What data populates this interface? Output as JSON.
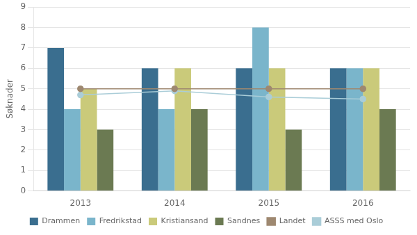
{
  "chart_data": {
    "type": "bar",
    "y_label": "Søknader",
    "categories": [
      2013,
      2014,
      2015,
      2016
    ],
    "series": [
      {
        "name": "Drammen",
        "color": "#3a6e8f",
        "values": [
          7,
          6,
          6,
          6
        ]
      },
      {
        "name": "Fredrikstad",
        "color": "#7ab5cb",
        "values": [
          4,
          4,
          8,
          6
        ]
      },
      {
        "name": "Kristiansand",
        "color": "#caca7a",
        "values": [
          5,
          6,
          6,
          6
        ]
      },
      {
        "name": "Sandnes",
        "color": "#6b7a52",
        "values": [
          3,
          4,
          3,
          4
        ]
      },
      {
        "name": "Landet",
        "color": "#9e8870",
        "type": "line",
        "marker": "circle",
        "values": [
          5,
          5,
          5,
          5
        ]
      },
      {
        "name": "ASSS med Oslo",
        "color": "#aacdd8",
        "type": "line",
        "marker": "circle",
        "values": [
          4.7,
          4.9,
          4.6,
          4.5
        ]
      }
    ],
    "ylim": [
      0,
      9
    ],
    "yticks": [
      0,
      1,
      2,
      3,
      4,
      5,
      6,
      7,
      8,
      9
    ],
    "grid": true,
    "legend": "bottom"
  }
}
